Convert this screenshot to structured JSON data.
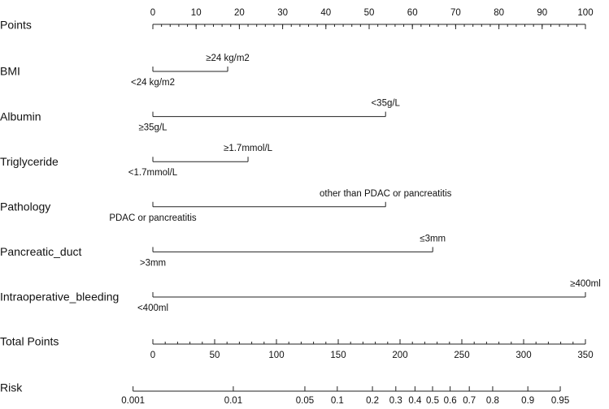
{
  "chart_data": {
    "type": "nomogram",
    "points_axis": {
      "name": "Points",
      "xlim": [
        0,
        100
      ],
      "xticks": [
        0,
        10,
        20,
        30,
        40,
        50,
        60,
        70,
        80,
        90,
        100
      ],
      "minor_tick_interval": 2
    },
    "variables": [
      {
        "name": "BMI",
        "levels": [
          "<24 kg/m2",
          "≥24 kg/m2"
        ],
        "points": [
          0,
          17.3
        ]
      },
      {
        "name": "Albumin",
        "levels": [
          "≥35g/L",
          "<35g/L"
        ],
        "points": [
          0,
          53.8
        ]
      },
      {
        "name": "Triglyceride",
        "levels": [
          "<1.7mmol/L",
          "≥1.7mmol/L"
        ],
        "points": [
          0,
          22
        ]
      },
      {
        "name": "Pathology",
        "levels": [
          "PDAC or pancreatitis",
          "other than PDAC or pancreatitis"
        ],
        "points": [
          0,
          53.8
        ]
      },
      {
        "name": "Pancreatic_duct",
        "levels": [
          ">3mm",
          "≤3mm"
        ],
        "points": [
          0,
          64.7
        ]
      },
      {
        "name": "Intraoperative_bleeding",
        "levels": [
          "<400ml",
          "≥400ml"
        ],
        "points": [
          0,
          100
        ]
      }
    ],
    "total_points_axis": {
      "name": "Total Points",
      "xlim": [
        0,
        350
      ],
      "xticks": [
        0,
        50,
        100,
        150,
        200,
        250,
        300,
        350
      ],
      "minor_tick_interval": 10
    },
    "risk_axis": {
      "name": "Risk",
      "xticks": [
        0.001,
        0.01,
        0.05,
        0.1,
        0.2,
        0.3,
        0.4,
        0.5,
        0.6,
        0.7,
        0.8,
        0.9,
        0.95
      ],
      "logit_intercept": -6.45,
      "logit_slope": 0.0285
    }
  }
}
